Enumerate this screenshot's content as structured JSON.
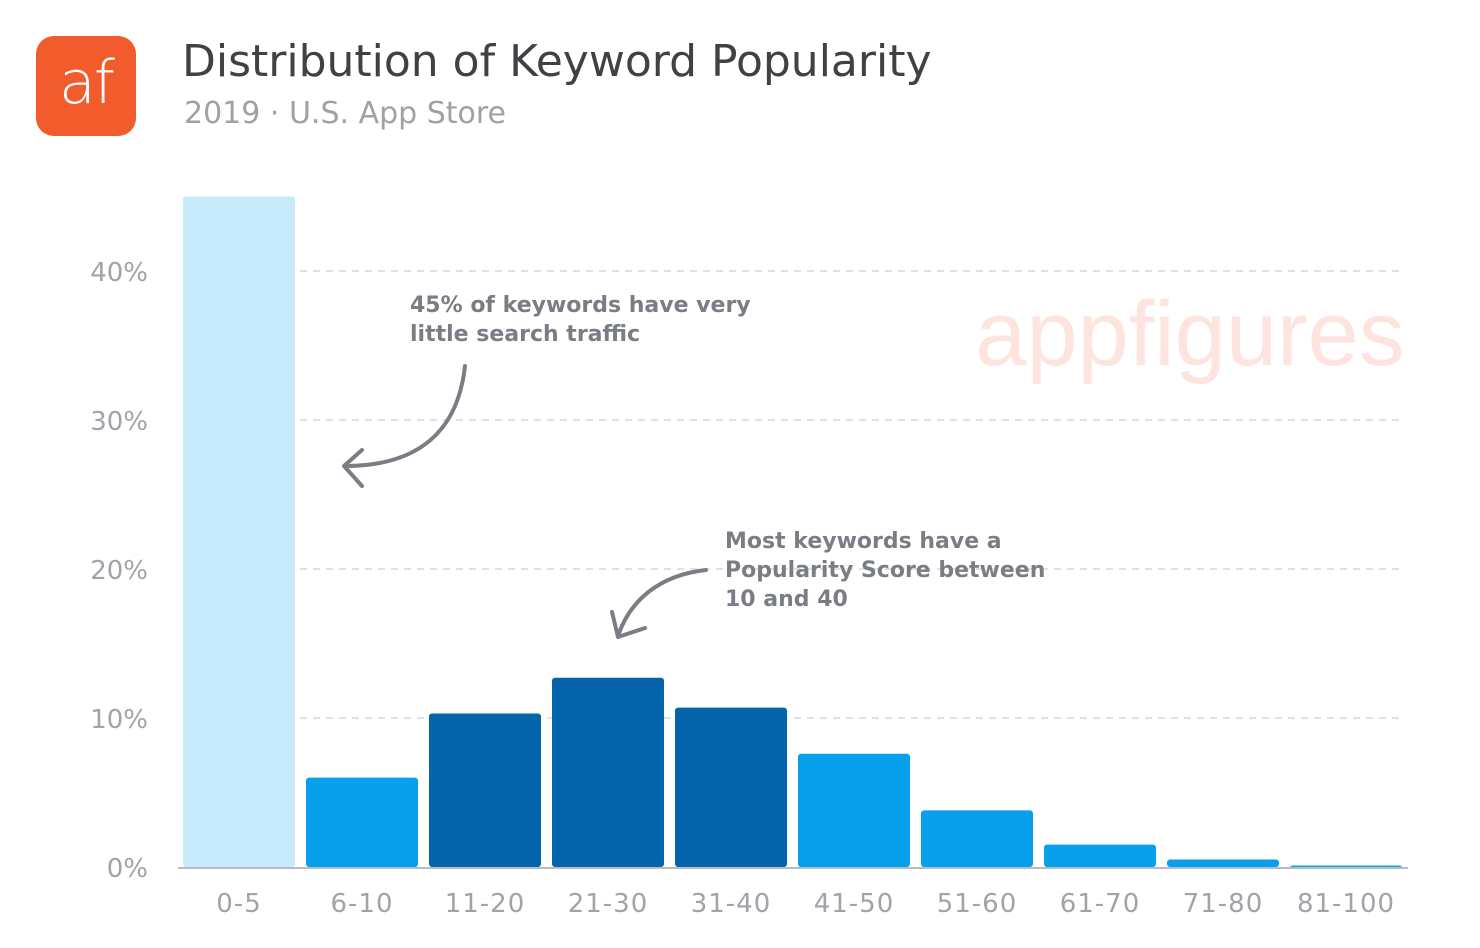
{
  "header": {
    "logo_text": "af",
    "title": "Distribution of Keyword Popularity",
    "subtitle": "2019 · U.S. App Store"
  },
  "watermark": "appfigures",
  "colors": {
    "logo_bg": "#f25b2b",
    "bar_low": "#c7eafc",
    "bar_mid": "#08a0ed",
    "bar_high": "#0465ac",
    "grid": "#d5d7da",
    "text_muted": "#a0a3a8",
    "annotation_text": "#7a7e84",
    "watermark": "#fde4df"
  },
  "annotations": [
    {
      "id": "low-note",
      "lines": [
        "45% of keywords have very",
        "little search traffic"
      ]
    },
    {
      "id": "mid-note",
      "lines": [
        "Most keywords have a",
        "Popularity Score between",
        "10 and 40"
      ]
    }
  ],
  "chart_data": {
    "type": "bar",
    "categories": [
      "0-5",
      "6-10",
      "11-20",
      "21-30",
      "31-40",
      "41-50",
      "51-60",
      "61-70",
      "71-80",
      "81-100"
    ],
    "values": [
      45,
      6,
      10.3,
      12.7,
      10.7,
      7.6,
      3.8,
      1.5,
      0.5,
      0.1
    ],
    "bar_colors": [
      "#c7eafc",
      "#08a0ed",
      "#0465ac",
      "#0465ac",
      "#0465ac",
      "#08a0ed",
      "#08a0ed",
      "#08a0ed",
      "#08a0ed",
      "#08a0ed"
    ],
    "yticks": [
      "0%",
      "10%",
      "20%",
      "30%",
      "40%"
    ],
    "ylim": [
      0,
      45
    ],
    "grid": true,
    "title": "",
    "xlabel": "",
    "ylabel": ""
  }
}
